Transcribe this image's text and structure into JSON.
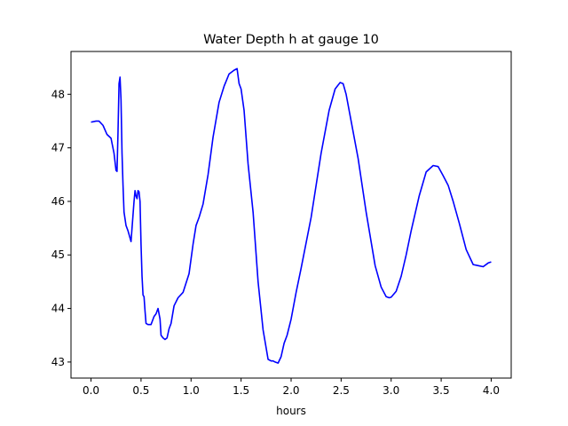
{
  "chart_data": {
    "type": "line",
    "title": "Water Depth h at gauge 10",
    "xlabel": "hours",
    "ylabel": "",
    "xlim": [
      -0.2,
      4.2
    ],
    "ylim": [
      42.7,
      48.8
    ],
    "xticks": [
      0.0,
      0.5,
      1.0,
      1.5,
      2.0,
      2.5,
      3.0,
      3.5,
      4.0
    ],
    "xtick_labels": [
      "0.0",
      "0.5",
      "1.0",
      "1.5",
      "2.0",
      "2.5",
      "3.0",
      "3.5",
      "4.0"
    ],
    "yticks": [
      43,
      44,
      45,
      46,
      47,
      48
    ],
    "ytick_labels": [
      "43",
      "44",
      "45",
      "46",
      "47",
      "48"
    ],
    "grid": false,
    "series": [
      {
        "color": "#0000ff",
        "x": [
          0.0,
          0.05,
          0.08,
          0.12,
          0.16,
          0.2,
          0.23,
          0.25,
          0.26,
          0.27,
          0.28,
          0.29,
          0.3,
          0.31,
          0.32,
          0.33,
          0.35,
          0.37,
          0.4,
          0.43,
          0.44,
          0.45,
          0.46,
          0.47,
          0.48,
          0.49,
          0.5,
          0.51,
          0.52,
          0.53,
          0.54,
          0.55,
          0.57,
          0.6,
          0.63,
          0.65,
          0.67,
          0.69,
          0.7,
          0.72,
          0.74,
          0.76,
          0.78,
          0.8,
          0.83,
          0.87,
          0.92,
          0.98,
          1.02,
          1.05,
          1.08,
          1.12,
          1.17,
          1.22,
          1.28,
          1.33,
          1.38,
          1.43,
          1.46,
          1.48,
          1.5,
          1.53,
          1.57,
          1.62,
          1.67,
          1.72,
          1.77,
          1.8,
          1.82,
          1.84,
          1.87,
          1.9,
          1.93,
          1.96,
          2.0,
          2.05,
          2.1,
          2.2,
          2.3,
          2.38,
          2.44,
          2.49,
          2.52,
          2.55,
          2.6,
          2.67,
          2.75,
          2.84,
          2.9,
          2.95,
          2.98,
          3.0,
          3.05,
          3.1,
          3.15,
          3.2,
          3.28,
          3.35,
          3.42,
          3.47,
          3.52,
          3.57,
          3.62,
          3.68,
          3.75,
          3.82,
          3.87,
          3.92,
          3.97,
          4.0
        ],
        "y": [
          47.48,
          47.5,
          47.5,
          47.42,
          47.25,
          47.18,
          46.9,
          46.58,
          46.56,
          47.3,
          48.2,
          48.32,
          47.9,
          46.9,
          46.3,
          45.8,
          45.55,
          45.45,
          45.25,
          46.0,
          46.2,
          46.1,
          46.05,
          46.2,
          46.18,
          46.0,
          45.2,
          44.6,
          44.25,
          44.22,
          43.95,
          43.72,
          43.7,
          43.7,
          43.85,
          43.9,
          44.0,
          43.8,
          43.5,
          43.45,
          43.42,
          43.45,
          43.62,
          43.72,
          44.05,
          44.2,
          44.3,
          44.65,
          45.2,
          45.55,
          45.7,
          45.95,
          46.5,
          47.2,
          47.85,
          48.15,
          48.38,
          48.45,
          48.48,
          48.2,
          48.1,
          47.7,
          46.7,
          45.8,
          44.5,
          43.6,
          43.05,
          43.02,
          43.02,
          43.0,
          42.98,
          43.1,
          43.35,
          43.5,
          43.8,
          44.3,
          44.75,
          45.7,
          46.9,
          47.7,
          48.1,
          48.22,
          48.2,
          48.0,
          47.5,
          46.8,
          45.8,
          44.8,
          44.4,
          44.22,
          44.2,
          44.21,
          44.32,
          44.6,
          45.0,
          45.45,
          46.1,
          46.55,
          46.67,
          46.65,
          46.48,
          46.3,
          46.0,
          45.6,
          45.1,
          44.82,
          44.8,
          44.78,
          44.85,
          44.87
        ]
      }
    ]
  }
}
